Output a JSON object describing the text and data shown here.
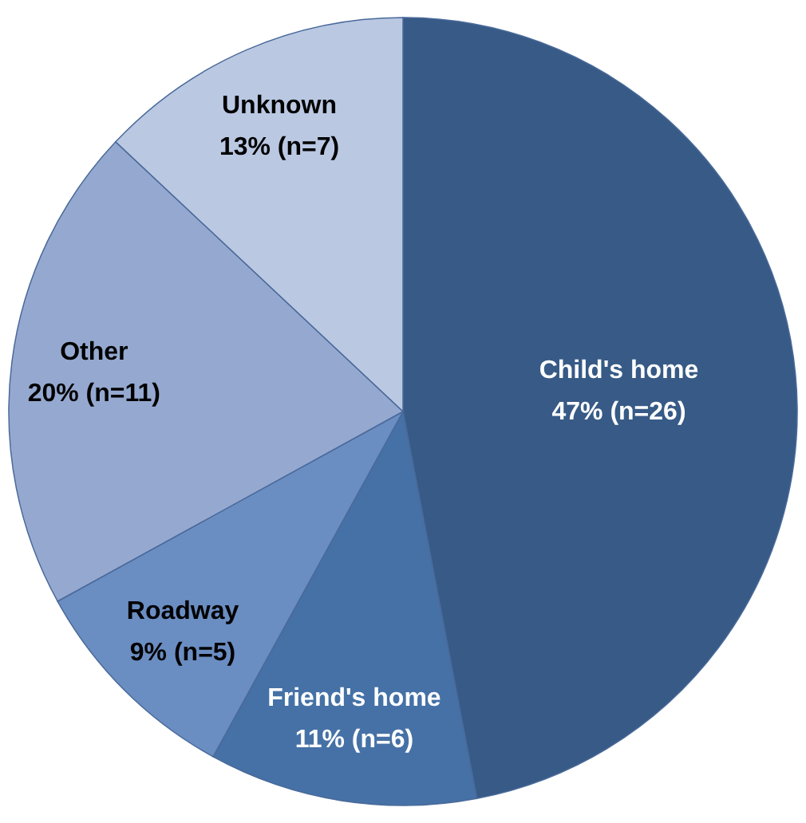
{
  "chart_data": {
    "type": "pie",
    "categories": [
      "Child's home",
      "Friend's home",
      "Roadway",
      "Other",
      "Unknown"
    ],
    "values": [
      47,
      11,
      9,
      20,
      13
    ],
    "value_labels": [
      "47% (n=26)",
      "11% (n=6)",
      "9% (n=5)",
      "20% (n=11)",
      "13% (n=7)"
    ],
    "colors": [
      "#375a86",
      "#4571a6",
      "#6a8dc2",
      "#95a9d0",
      "#bac8e2"
    ]
  }
}
